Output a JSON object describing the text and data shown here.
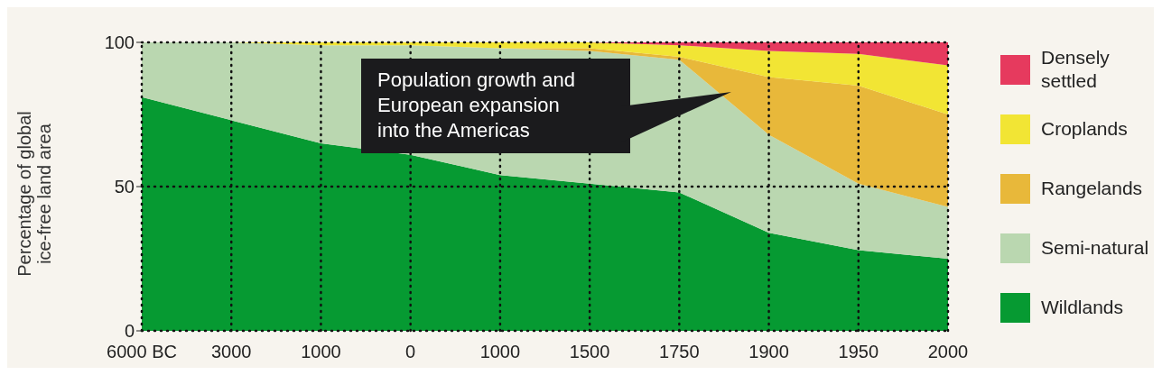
{
  "chart_data": {
    "type": "area",
    "stacked": true,
    "categories": [
      "6000 BC",
      "3000",
      "1000",
      "0",
      "1000",
      "1500",
      "1750",
      "1900",
      "1950",
      "2000"
    ],
    "series": [
      {
        "name": "Wildlands",
        "color": "#069a32",
        "values": [
          81,
          73,
          65,
          61,
          54,
          51,
          48,
          34,
          28,
          25
        ]
      },
      {
        "name": "Semi-natural",
        "color": "#bad7b0",
        "values": [
          19,
          27,
          34,
          38,
          44,
          46,
          46,
          34,
          23,
          18
        ]
      },
      {
        "name": "Rangelands",
        "color": "#e8b83a",
        "values": [
          0,
          0,
          0,
          0,
          0,
          1,
          1,
          20,
          34,
          32
        ]
      },
      {
        "name": "Croplands",
        "color": "#f2e534",
        "values": [
          0,
          0,
          1,
          1,
          2,
          2,
          4,
          9,
          11,
          17
        ]
      },
      {
        "name": "Densely settled",
        "color": "#e63a5e",
        "values": [
          0,
          0,
          0,
          0,
          0,
          0,
          1,
          3,
          4,
          8
        ]
      }
    ],
    "ylabel": "Percentage of global ice-free land area",
    "ylim": [
      0,
      100
    ],
    "yticks": [
      0,
      50,
      100
    ],
    "grid": true,
    "legend": "right",
    "annotations": [
      "Population growth and European expansion into the Americas"
    ]
  }
}
